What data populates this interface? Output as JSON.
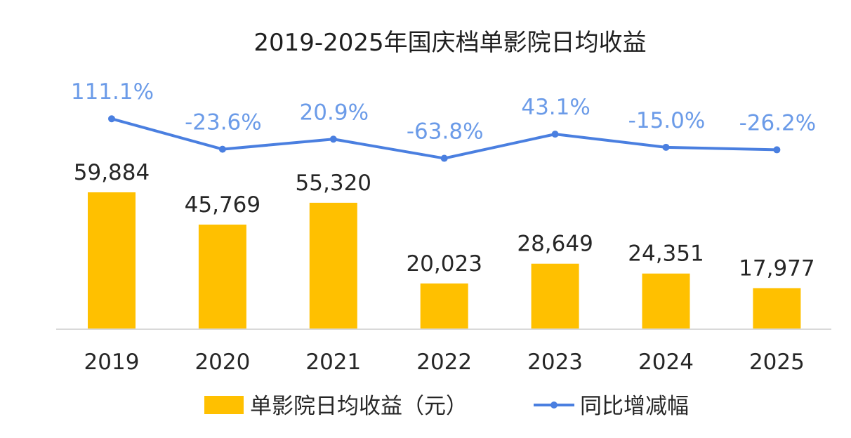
{
  "chart_data": {
    "type": "bar",
    "title": "2019-2025年国庆档单影院日均收益",
    "categories": [
      "2019",
      "2020",
      "2021",
      "2022",
      "2023",
      "2024",
      "2025"
    ],
    "series": [
      {
        "name": "单影院日均收益（元）",
        "type": "bar",
        "values": [
          59884,
          45769,
          55320,
          20023,
          28649,
          24351,
          17977
        ],
        "labels": [
          "59,884",
          "45,769",
          "55,320",
          "20,023",
          "28,649",
          "24,351",
          "17,977"
        ],
        "color": "#ffc000"
      },
      {
        "name": "同比增减幅",
        "type": "line",
        "values": [
          111.1,
          -23.6,
          20.9,
          -63.8,
          43.1,
          -15.0,
          -26.2
        ],
        "labels": [
          "111.1%",
          "-23.6%",
          "20.9%",
          "-63.8%",
          "43.1%",
          "-15.0%",
          "-26.2%"
        ],
        "color": "#4a7fe0"
      }
    ],
    "xlabel": "",
    "ylabel": "",
    "grid": false,
    "legend": "bottom-center"
  }
}
